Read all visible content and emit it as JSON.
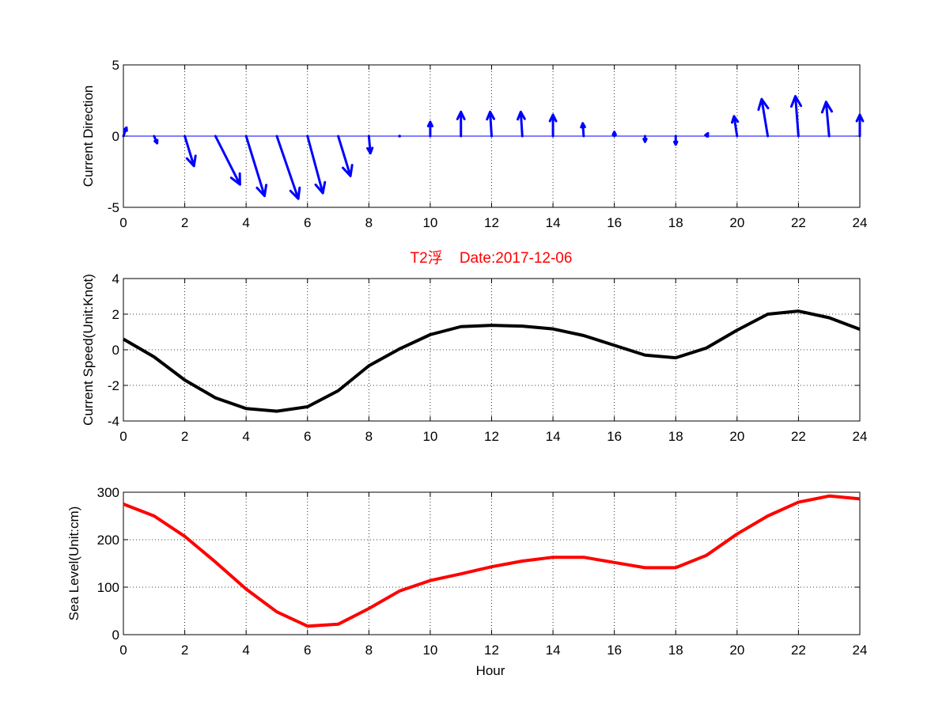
{
  "colors": {
    "direction": "#0000ff",
    "speed": "#000000",
    "sea_level": "#ff0000",
    "title": "#ff0000",
    "grid": "#000000"
  },
  "chart_data": [
    {
      "type": "quiver",
      "title": "",
      "xlabel": "",
      "ylabel": "Current Direction",
      "xlim": [
        0,
        24
      ],
      "ylim": [
        -5,
        5
      ],
      "xticks": [
        "0",
        "2",
        "4",
        "6",
        "8",
        "10",
        "12",
        "14",
        "16",
        "18",
        "20",
        "22",
        "24"
      ],
      "yticks": [
        "-5",
        "0",
        "5"
      ],
      "grid": true,
      "x": [
        0,
        1,
        2,
        3,
        4,
        5,
        6,
        7,
        8,
        9,
        10,
        11,
        12,
        13,
        14,
        15,
        16,
        17,
        18,
        19,
        20,
        21,
        22,
        23,
        24
      ],
      "u": [
        0.1,
        0.1,
        0.3,
        0.8,
        0.6,
        0.7,
        0.5,
        0.4,
        0.05,
        0,
        0,
        0,
        -0.05,
        -0.05,
        0,
        -0.03,
        0,
        0,
        0,
        0.05,
        -0.1,
        -0.2,
        -0.1,
        -0.1,
        0
      ],
      "v": [
        0.6,
        -0.5,
        -2.1,
        -3.4,
        -4.2,
        -4.4,
        -4.0,
        -2.8,
        -1.2,
        -0.1,
        1.0,
        1.7,
        1.7,
        1.7,
        1.5,
        0.9,
        0.3,
        -0.4,
        -0.6,
        0.2,
        1.4,
        2.6,
        2.8,
        2.4,
        1.5
      ]
    },
    {
      "type": "line",
      "title": "T2浮    Date:2017-12-06",
      "xlabel": "",
      "ylabel": "Current Speed(Unit:Knot)",
      "xlim": [
        0,
        24
      ],
      "ylim": [
        -4,
        4
      ],
      "xticks": [
        "0",
        "2",
        "4",
        "6",
        "8",
        "10",
        "12",
        "14",
        "16",
        "18",
        "20",
        "22",
        "24"
      ],
      "yticks": [
        "-4",
        "-2",
        "0",
        "2",
        "4"
      ],
      "grid": true,
      "x": [
        0,
        1,
        2,
        3,
        4,
        5,
        6,
        7,
        8,
        9,
        10,
        11,
        12,
        13,
        14,
        15,
        16,
        17,
        18,
        19,
        20,
        21,
        22,
        23,
        24
      ],
      "y": [
        0.6,
        -0.4,
        -1.7,
        -2.7,
        -3.3,
        -3.45,
        -3.2,
        -2.3,
        -0.9,
        0.05,
        0.85,
        1.3,
        1.37,
        1.33,
        1.17,
        0.8,
        0.25,
        -0.3,
        -0.45,
        0.1,
        1.1,
        2.0,
        2.17,
        1.8,
        1.15
      ]
    },
    {
      "type": "line",
      "title": "",
      "xlabel": "Hour",
      "ylabel": "Sea Level(Unit:cm)",
      "xlim": [
        0,
        24
      ],
      "ylim": [
        0,
        300
      ],
      "xticks": [
        "0",
        "2",
        "4",
        "6",
        "8",
        "10",
        "12",
        "14",
        "16",
        "18",
        "20",
        "22",
        "24"
      ],
      "yticks": [
        "0",
        "100",
        "200",
        "300"
      ],
      "grid": true,
      "x": [
        0,
        1,
        2,
        3,
        4,
        5,
        6,
        7,
        8,
        9,
        10,
        11,
        12,
        13,
        14,
        15,
        16,
        17,
        18,
        19,
        20,
        21,
        22,
        23,
        24
      ],
      "y": [
        275,
        250,
        207,
        153,
        96,
        48,
        18,
        22,
        55,
        92,
        114,
        128,
        143,
        155,
        163,
        163,
        152,
        141,
        141,
        167,
        212,
        250,
        279,
        292,
        286
      ]
    }
  ]
}
